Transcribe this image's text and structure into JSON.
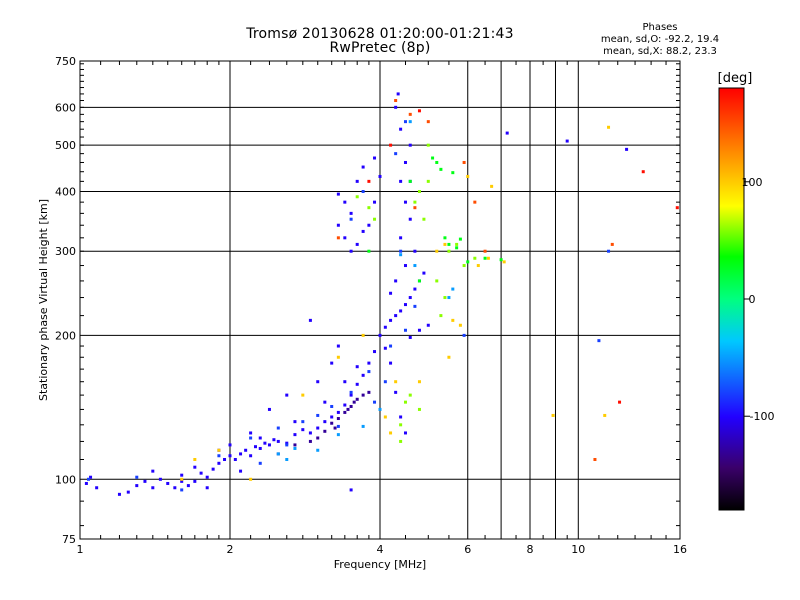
{
  "header": {
    "title": "Tromsø 20130628 01:20:00-01:21:43",
    "subtitle": "RwPretec (8p)"
  },
  "stats": {
    "heading": "Phases",
    "line_o": "mean, sd,O: -92.2, 19.4",
    "line_x": "mean, sd,X:  88.2, 23.3"
  },
  "colorbar": {
    "unit_label": "[deg]",
    "ticks": [
      "100",
      "0",
      "-100"
    ],
    "tick_values": [
      100,
      0,
      -100
    ],
    "range": [
      -180,
      180
    ]
  },
  "chart_data": {
    "type": "scatter",
    "xlabel": "Frequency [MHz]",
    "ylabel": "Stationary phase Virtual Height [km]",
    "x_scale": "log",
    "y_scale": "log",
    "xlim": [
      1,
      16
    ],
    "ylim": [
      75,
      750
    ],
    "x_ticks": [
      1,
      2,
      4,
      6,
      8,
      10,
      16
    ],
    "x_minor_ticks": [
      7,
      9
    ],
    "y_ticks": [
      75,
      100,
      200,
      300,
      400,
      500,
      600,
      750
    ],
    "grid": true,
    "color_scale": "phase (deg), rainbow from -180 (black) to 180 (red)",
    "series": [
      {
        "phase": -100,
        "points": [
          [
            1.03,
            98
          ],
          [
            1.05,
            101
          ],
          [
            1.08,
            96
          ],
          [
            1.2,
            93
          ],
          [
            1.25,
            94
          ],
          [
            1.3,
            97
          ],
          [
            1.35,
            99
          ],
          [
            1.4,
            96
          ],
          [
            1.45,
            100
          ],
          [
            1.5,
            98
          ],
          [
            1.55,
            96
          ],
          [
            1.6,
            102
          ],
          [
            1.65,
            97
          ],
          [
            1.7,
            99
          ],
          [
            1.75,
            103
          ],
          [
            1.8,
            101
          ],
          [
            1.85,
            105
          ],
          [
            1.9,
            108
          ],
          [
            1.95,
            110
          ],
          [
            2.0,
            112
          ],
          [
            2.05,
            110
          ],
          [
            2.1,
            113
          ],
          [
            2.15,
            115
          ],
          [
            2.2,
            112
          ],
          [
            2.25,
            117
          ],
          [
            2.3,
            116
          ],
          [
            2.35,
            119
          ],
          [
            2.4,
            118
          ],
          [
            2.45,
            121
          ],
          [
            2.5,
            120
          ],
          [
            2.6,
            119
          ],
          [
            2.7,
            124
          ],
          [
            2.8,
            127
          ],
          [
            2.9,
            125
          ],
          [
            3.0,
            128
          ],
          [
            3.1,
            132
          ],
          [
            3.2,
            135
          ],
          [
            3.3,
            138
          ],
          [
            3.4,
            143
          ],
          [
            3.5,
            150
          ],
          [
            3.6,
            158
          ],
          [
            3.7,
            165
          ],
          [
            3.8,
            175
          ],
          [
            3.9,
            185
          ],
          [
            4.0,
            200
          ],
          [
            4.1,
            208
          ],
          [
            4.2,
            215
          ],
          [
            4.3,
            220
          ],
          [
            4.4,
            225
          ],
          [
            4.5,
            232
          ],
          [
            4.6,
            240
          ],
          [
            4.7,
            250
          ],
          [
            4.8,
            260
          ],
          [
            4.9,
            270
          ],
          [
            5.0,
            210
          ],
          [
            4.3,
            260
          ],
          [
            4.5,
            280
          ],
          [
            4.7,
            300
          ],
          [
            4.4,
            320
          ],
          [
            4.6,
            350
          ],
          [
            4.5,
            380
          ],
          [
            4.4,
            420
          ],
          [
            4.5,
            460
          ],
          [
            4.6,
            500
          ],
          [
            4.4,
            540
          ],
          [
            4.3,
            600
          ],
          [
            4.35,
            640
          ],
          [
            3.3,
            340
          ],
          [
            3.4,
            320
          ],
          [
            3.5,
            300
          ],
          [
            3.6,
            310
          ],
          [
            3.7,
            330
          ],
          [
            3.5,
            360
          ],
          [
            3.4,
            380
          ],
          [
            3.3,
            395
          ],
          [
            3.6,
            420
          ],
          [
            3.7,
            450
          ],
          [
            3.9,
            470
          ],
          [
            4.0,
            430
          ],
          [
            3.9,
            380
          ],
          [
            3.8,
            340
          ],
          [
            2.9,
            215
          ],
          [
            3.2,
            175
          ],
          [
            3.3,
            190
          ],
          [
            3.0,
            160
          ],
          [
            2.6,
            150
          ],
          [
            2.4,
            140
          ],
          [
            2.2,
            125
          ],
          [
            2.0,
            118
          ],
          [
            1.9,
            115
          ],
          [
            1.7,
            106
          ],
          [
            1.6,
            99
          ],
          [
            1.4,
            104
          ],
          [
            1.8,
            96
          ],
          [
            2.1,
            104
          ],
          [
            2.3,
            122
          ],
          [
            2.7,
            132
          ],
          [
            3.1,
            145
          ],
          [
            3.4,
            160
          ],
          [
            3.6,
            172
          ],
          [
            4.1,
            188
          ],
          [
            4.2,
            245
          ],
          [
            4.6,
            198
          ],
          [
            4.8,
            205
          ],
          [
            4.2,
            175
          ],
          [
            4.3,
            152
          ],
          [
            4.4,
            135
          ],
          [
            4.5,
            125
          ],
          [
            3.5,
            95
          ],
          [
            12.5,
            490
          ],
          [
            9.5,
            510
          ],
          [
            7.2,
            530
          ]
        ]
      },
      {
        "phase": -80,
        "points": [
          [
            1.04,
            100
          ],
          [
            1.3,
            101
          ],
          [
            1.6,
            95
          ],
          [
            1.9,
            112
          ],
          [
            2.2,
            122
          ],
          [
            2.5,
            128
          ],
          [
            2.8,
            132
          ],
          [
            3.0,
            136
          ],
          [
            3.2,
            142
          ],
          [
            3.5,
            152
          ],
          [
            3.8,
            168
          ],
          [
            4.2,
            190
          ],
          [
            4.5,
            205
          ],
          [
            4.7,
            230
          ],
          [
            4.3,
            480
          ],
          [
            4.5,
            560
          ],
          [
            3.7,
            400
          ],
          [
            3.5,
            350
          ],
          [
            4.4,
            300
          ],
          [
            4.6,
            420
          ],
          [
            2.3,
            108
          ],
          [
            2.6,
            118
          ],
          [
            3.3,
            129
          ],
          [
            3.9,
            145
          ],
          [
            4.1,
            160
          ],
          [
            5.9,
            200
          ],
          [
            11.5,
            300
          ],
          [
            11.0,
            195
          ]
        ]
      },
      {
        "phase": -130,
        "points": [
          [
            2.7,
            118
          ],
          [
            3.0,
            122
          ],
          [
            3.1,
            126
          ],
          [
            3.2,
            131
          ],
          [
            3.3,
            134
          ],
          [
            3.4,
            138
          ],
          [
            3.5,
            142
          ],
          [
            3.6,
            147
          ],
          [
            3.8,
            152
          ],
          [
            2.9,
            120
          ],
          [
            3.25,
            128
          ],
          [
            3.45,
            140
          ],
          [
            3.55,
            145
          ],
          [
            3.7,
            150
          ],
          [
            2.5,
            113
          ]
        ]
      },
      {
        "phase": -50,
        "points": [
          [
            2.5,
            113
          ],
          [
            2.6,
            110
          ],
          [
            2.7,
            116
          ],
          [
            3.0,
            115
          ],
          [
            3.3,
            124
          ],
          [
            3.7,
            129
          ],
          [
            4.0,
            140
          ],
          [
            4.4,
            295
          ],
          [
            4.7,
            280
          ],
          [
            4.6,
            560
          ],
          [
            5.5,
            240
          ],
          [
            5.6,
            250
          ]
        ]
      },
      {
        "phase": 60,
        "points": [
          [
            4.4,
            130
          ],
          [
            4.5,
            145
          ],
          [
            4.6,
            150
          ],
          [
            4.8,
            140
          ],
          [
            5.3,
            220
          ],
          [
            5.4,
            240
          ],
          [
            5.2,
            260
          ],
          [
            5.5,
            300
          ],
          [
            5.7,
            310
          ],
          [
            5.9,
            280
          ],
          [
            6.2,
            290
          ],
          [
            4.8,
            400
          ],
          [
            5.0,
            420
          ],
          [
            4.9,
            350
          ],
          [
            4.7,
            380
          ],
          [
            3.9,
            350
          ],
          [
            3.8,
            370
          ],
          [
            3.6,
            390
          ],
          [
            4.4,
            120
          ],
          [
            5.0,
            500
          ]
        ]
      },
      {
        "phase": 100,
        "points": [
          [
            1.7,
            110
          ],
          [
            1.9,
            115
          ],
          [
            2.2,
            100
          ],
          [
            2.8,
            150
          ],
          [
            3.3,
            180
          ],
          [
            3.7,
            200
          ],
          [
            4.1,
            135
          ],
          [
            4.2,
            125
          ],
          [
            4.3,
            160
          ],
          [
            4.8,
            160
          ],
          [
            5.2,
            300
          ],
          [
            5.4,
            310
          ],
          [
            5.6,
            215
          ],
          [
            5.8,
            210
          ],
          [
            5.5,
            180
          ],
          [
            6.3,
            280
          ],
          [
            6.6,
            290
          ],
          [
            7.1,
            285
          ],
          [
            6.0,
            430
          ],
          [
            6.7,
            410
          ],
          [
            8.9,
            136
          ],
          [
            11.3,
            136
          ],
          [
            11.5,
            545
          ],
          [
            1.6,
            100
          ]
        ]
      },
      {
        "phase": 30,
        "points": [
          [
            5.5,
            310
          ],
          [
            5.7,
            305
          ],
          [
            5.4,
            320
          ],
          [
            5.8,
            318
          ],
          [
            6.0,
            285
          ],
          [
            6.5,
            290
          ],
          [
            7.0,
            288
          ],
          [
            5.3,
            445
          ],
          [
            5.2,
            460
          ],
          [
            5.1,
            470
          ],
          [
            5.6,
            438
          ],
          [
            4.6,
            420
          ],
          [
            4.8,
            260
          ],
          [
            3.8,
            300
          ]
        ]
      },
      {
        "phase": 150,
        "points": [
          [
            4.3,
            620
          ],
          [
            4.6,
            580
          ],
          [
            5.0,
            560
          ],
          [
            6.5,
            300
          ],
          [
            10.8,
            110
          ],
          [
            11.7,
            310
          ],
          [
            5.9,
            460
          ],
          [
            4.7,
            370
          ],
          [
            3.3,
            320
          ],
          [
            6.2,
            380
          ]
        ]
      },
      {
        "phase": 175,
        "points": [
          [
            4.2,
            500
          ],
          [
            4.8,
            590
          ],
          [
            13.5,
            440
          ],
          [
            15.8,
            370
          ],
          [
            3.8,
            420
          ],
          [
            12.1,
            145
          ]
        ]
      }
    ]
  }
}
